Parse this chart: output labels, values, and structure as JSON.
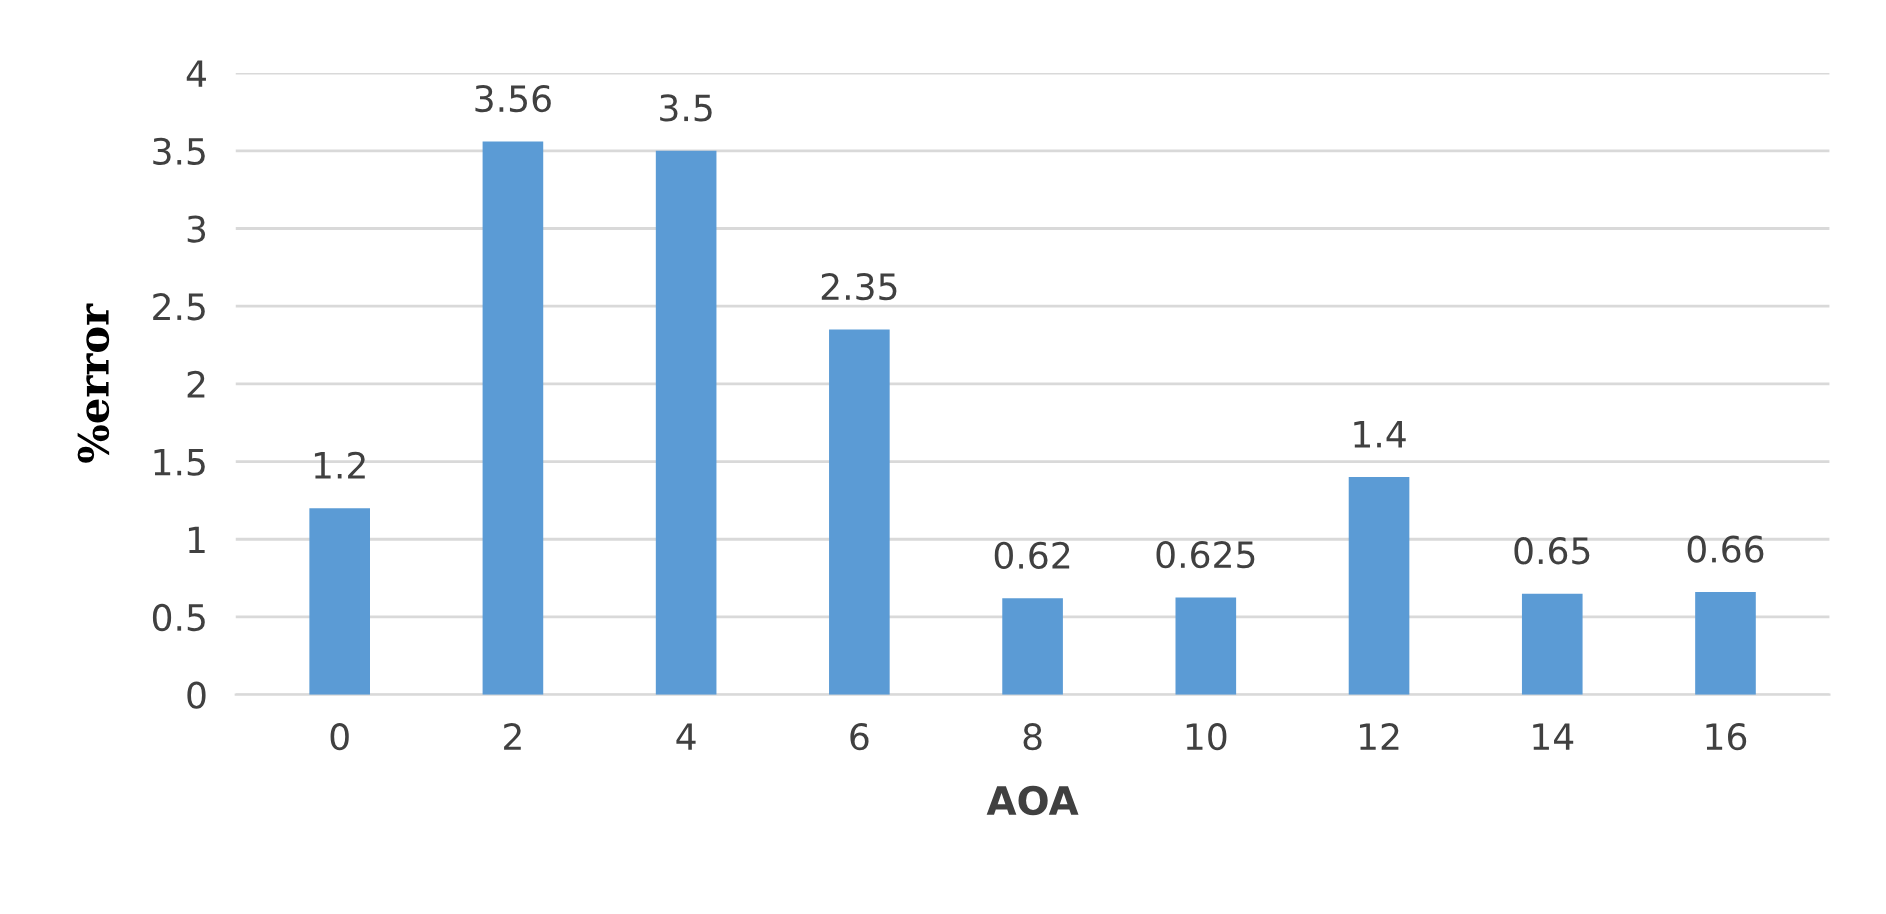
{
  "chart_data": {
    "type": "bar",
    "xlabel": "AOA",
    "ylabel": "%error",
    "categories": [
      "0",
      "2",
      "4",
      "6",
      "8",
      "10",
      "12",
      "14",
      "16"
    ],
    "values": [
      1.2,
      3.56,
      3.5,
      2.35,
      0.62,
      0.625,
      1.4,
      0.65,
      0.66
    ],
    "color": "#5b9bd5",
    "ylim": [
      0,
      4
    ],
    "yticks": [
      0,
      0.5,
      1,
      1.5,
      2,
      2.5,
      3,
      3.5,
      4
    ],
    "grid": "y",
    "data_labels": true
  }
}
